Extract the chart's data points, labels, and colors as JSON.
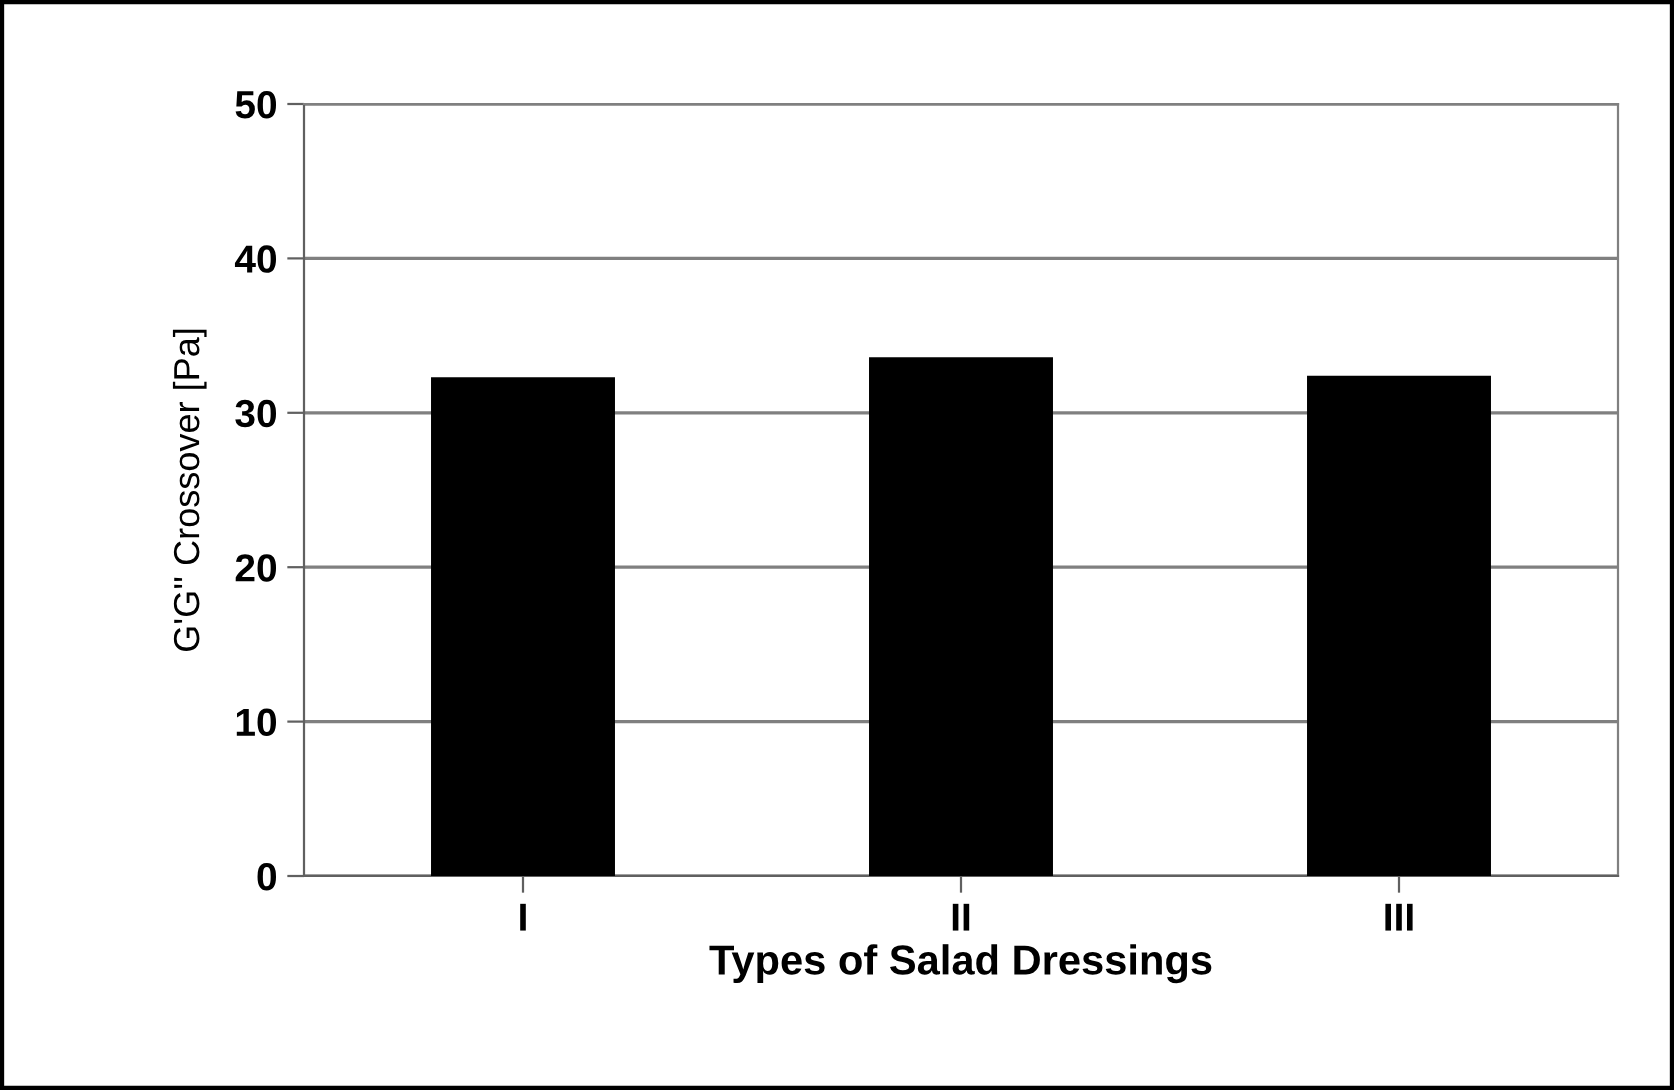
{
  "chart_data": {
    "type": "bar",
    "xlabel": "Types of Salad Dressings",
    "ylabel": "G'G'' Crossover [Pa]",
    "categories": [
      "I",
      "II",
      "III"
    ],
    "values": [
      32.3,
      33.6,
      32.4
    ],
    "color": "#000000",
    "ylim": [
      0,
      50
    ],
    "yticks": [
      0,
      10,
      20,
      30,
      40,
      50
    ],
    "grid": "y",
    "legend": false
  }
}
